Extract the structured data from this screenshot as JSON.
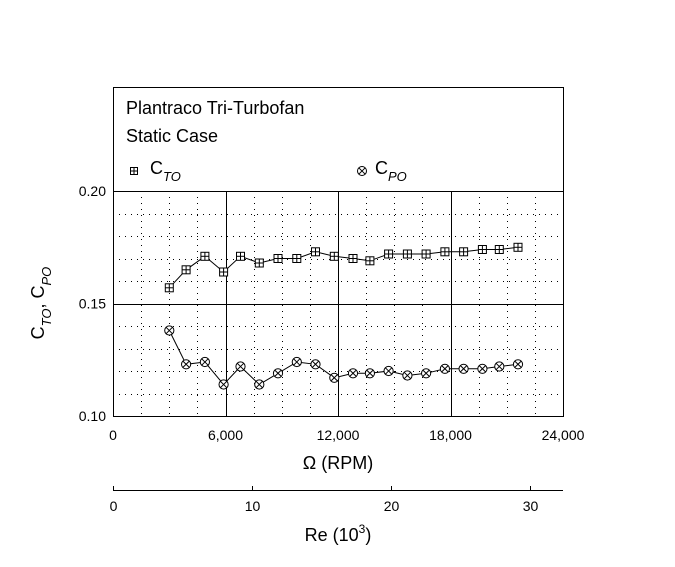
{
  "chart_data": {
    "type": "line",
    "title": "Plantraco Tri-Turbofan",
    "subtitle": "Static Case",
    "xlabel_symbol": "Ω",
    "xlabel_rest": " (RPM)",
    "ylabel": {
      "main1": "C",
      "sub1": "TO",
      "sep": ", ",
      "main2": "C",
      "sub2": "PO"
    },
    "xlim": [
      0,
      24000
    ],
    "ylim": [
      0.1,
      0.2
    ],
    "x_ticks": [
      {
        "value": 0,
        "label": "0"
      },
      {
        "value": 6000,
        "label": "6,000"
      },
      {
        "value": 12000,
        "label": "12,000"
      },
      {
        "value": 18000,
        "label": "18,000"
      },
      {
        "value": 24000,
        "label": "24,000"
      }
    ],
    "y_ticks": [
      {
        "value": 0.1,
        "label": "0.10"
      },
      {
        "value": 0.15,
        "label": "0.15"
      },
      {
        "value": 0.2,
        "label": "0.20"
      }
    ],
    "minor_grid": {
      "x_step": 1500,
      "y_step": 0.01
    },
    "legend": {
      "placement": "top",
      "items": [
        {
          "main": "C",
          "sub": "TO",
          "marker": "boxplus"
        },
        {
          "main": "C",
          "sub": "PO",
          "marker": "circletimes"
        }
      ]
    },
    "series": [
      {
        "name": "CTO",
        "marker": "boxplus",
        "x": [
          3000,
          3900,
          4900,
          5900,
          6800,
          7800,
          8800,
          9800,
          10800,
          11800,
          12800,
          13700,
          14700,
          15700,
          16700,
          17700,
          18700,
          19700,
          20600,
          21600
        ],
        "y": [
          0.157,
          0.165,
          0.171,
          0.164,
          0.171,
          0.168,
          0.17,
          0.17,
          0.173,
          0.171,
          0.17,
          0.169,
          0.172,
          0.172,
          0.172,
          0.173,
          0.173,
          0.174,
          0.174,
          0.175
        ]
      },
      {
        "name": "CPO",
        "marker": "circletimes",
        "x": [
          3000,
          3900,
          4900,
          5900,
          6800,
          7800,
          8800,
          9800,
          10800,
          11800,
          12800,
          13700,
          14700,
          15700,
          16700,
          17700,
          18700,
          19700,
          20600,
          21600
        ],
        "y": [
          0.138,
          0.123,
          0.124,
          0.114,
          0.122,
          0.114,
          0.119,
          0.124,
          0.123,
          0.117,
          0.119,
          0.119,
          0.12,
          0.118,
          0.119,
          0.121,
          0.121,
          0.121,
          0.122,
          0.123
        ]
      }
    ],
    "secondary_axis": {
      "label_main": "Re (10",
      "label_sup": "3",
      "label_close": ")",
      "xlim": [
        0,
        32.4
      ],
      "ticks": [
        {
          "value": 0,
          "label": "0"
        },
        {
          "value": 10,
          "label": "10"
        },
        {
          "value": 20,
          "label": "20"
        },
        {
          "value": 30,
          "label": "30"
        }
      ]
    }
  }
}
